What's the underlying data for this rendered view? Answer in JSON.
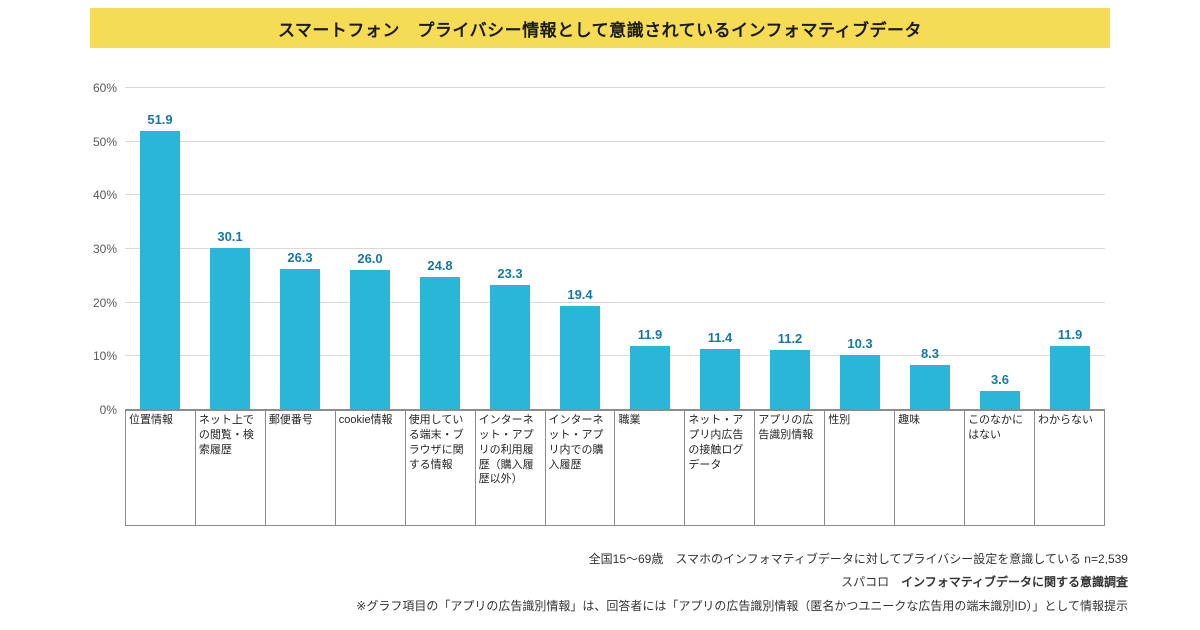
{
  "title": "スマートフォン　プライバシー情報として意識されているインフォマティブデータ",
  "colors": {
    "banner_bg": "#f6dc55",
    "bar": "#29b6d8",
    "value_label": "#1778a5"
  },
  "chart_data": {
    "type": "bar",
    "title": "スマートフォン　プライバシー情報として意識されているインフォマティブデータ",
    "categories": [
      "位置情報",
      "ネット上での閲覧・検索履歴",
      "郵便番号",
      "cookie情報",
      "使用している端末・ブラウザに関する情報",
      "インターネット・アプリの利用履歴（購入履歴以外）",
      "インターネット・アプリ内での購入履歴",
      "職業",
      "ネット・アプリ内広告の接触ログデータ",
      "アプリの広告識別情報",
      "性別",
      "趣味",
      "このなかにはない",
      "わからない"
    ],
    "values": [
      51.9,
      30.1,
      26.3,
      26.0,
      24.8,
      23.3,
      19.4,
      11.9,
      11.4,
      11.2,
      10.3,
      8.3,
      3.6,
      11.9
    ],
    "value_labels": [
      "51.9",
      "30.1",
      "26.3",
      "26.0",
      "24.8",
      "23.3",
      "19.4",
      "11.9",
      "11.4",
      "11.2",
      "10.3",
      "8.3",
      "3.6",
      "11.9"
    ],
    "xlabel": "",
    "ylabel": "",
    "ylim": [
      0,
      60
    ],
    "y_ticks": [
      "0%",
      "10%",
      "20%",
      "30%",
      "40%",
      "50%",
      "60%"
    ],
    "grid": true,
    "legend": false
  },
  "footnotes": {
    "line1": "全国15～69歳　スマホのインフォマティブデータに対してプライバシー設定を意識している n=2,539",
    "line2_prefix": "スパコロ　",
    "line2_bold": "インフォマティブデータに関する意識調査",
    "line3": "※グラフ項目の「アプリの広告識別情報」は、回答者には「アプリの広告識別情報（匿名かつユニークな広告用の端末識別ID）」として情報提示"
  }
}
